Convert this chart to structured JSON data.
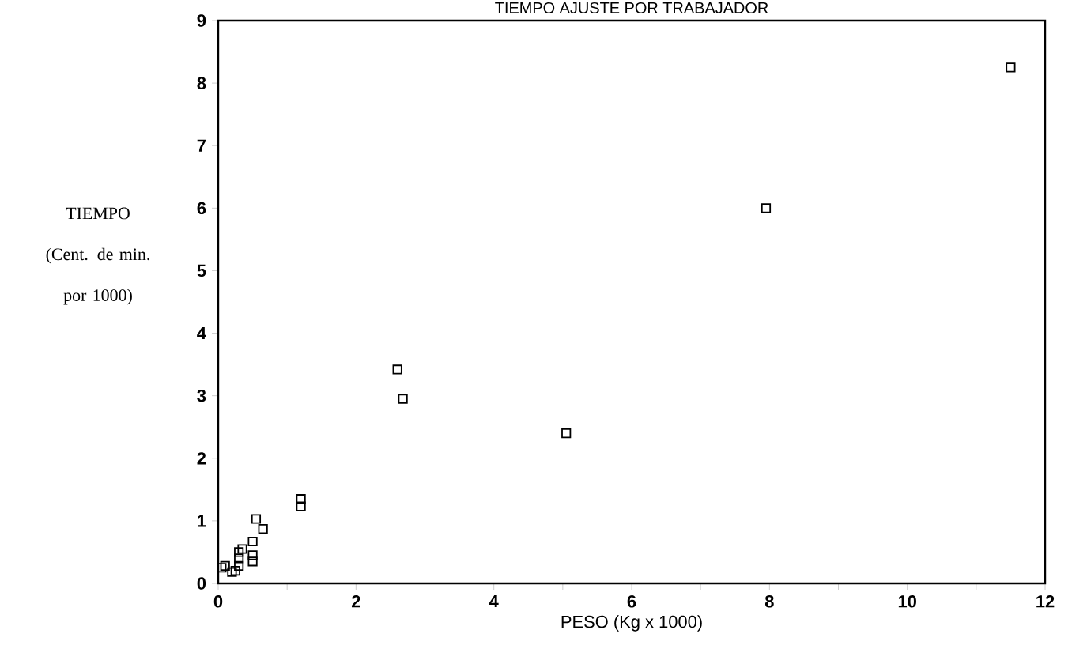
{
  "chart_data": {
    "type": "scatter",
    "title": "TIEMPO AJUSTE POR TRABAJADOR",
    "xlabel": "PESO (Kg x 1000)",
    "ylabel": "TIEMPO (Cent. de min. por 1000)",
    "x": [
      11.5,
      7.95,
      5.05,
      2.6,
      2.68,
      1.2,
      1.2,
      0.55,
      0.65,
      0.5,
      0.5,
      0.5,
      0.35,
      0.3,
      0.3,
      0.3,
      0.25,
      0.2,
      0.1,
      0.05
    ],
    "series": [
      {
        "color": "#000000",
        "values": [
          8.25,
          6.0,
          2.4,
          3.42,
          2.95,
          1.35,
          1.23,
          1.03,
          0.87,
          0.67,
          0.45,
          0.35,
          0.55,
          0.5,
          0.4,
          0.28,
          0.2,
          0.18,
          0.28,
          0.25
        ]
      }
    ],
    "xlim": [
      0,
      12
    ],
    "ylim": [
      0,
      9
    ],
    "xticks": [
      0,
      {
        "value": 1,
        "label": null
      },
      2,
      {
        "value": 3,
        "label": null
      },
      4,
      {
        "value": 5,
        "label": null
      },
      6,
      {
        "value": 7,
        "label": null
      },
      8,
      {
        "value": 9,
        "label": null
      },
      10,
      {
        "value": 11,
        "label": null
      },
      12
    ],
    "yticks": [
      0,
      1,
      2,
      3,
      4,
      5,
      6,
      7,
      8,
      9
    ],
    "marker": "square"
  }
}
